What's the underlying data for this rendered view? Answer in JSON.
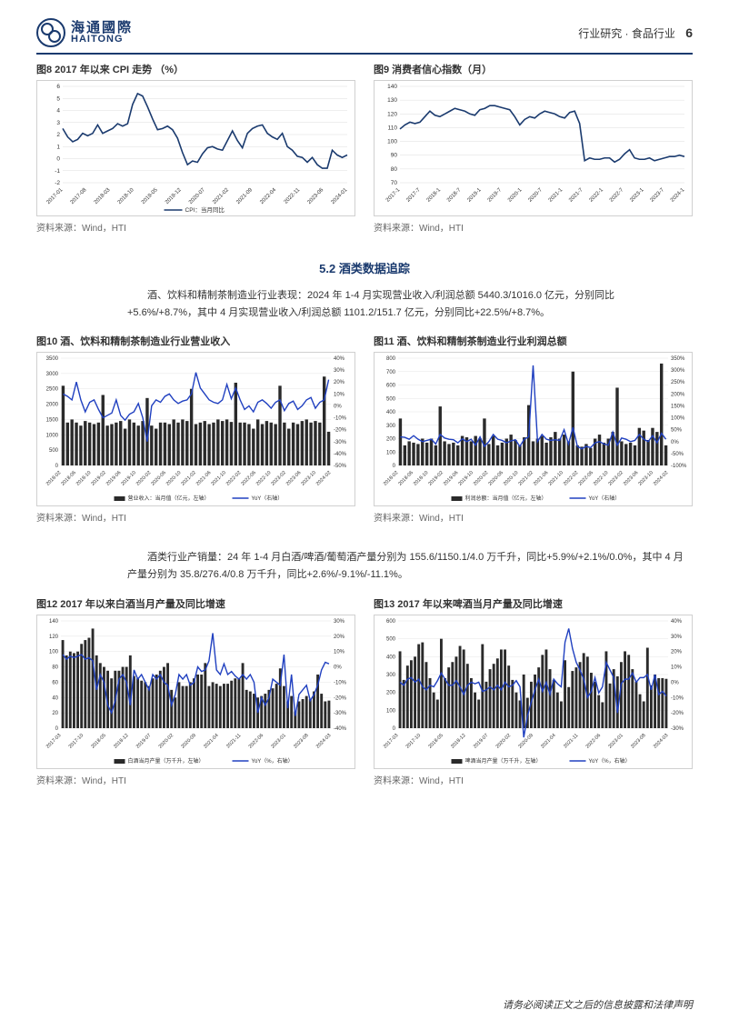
{
  "header": {
    "logo_cn": "海通國際",
    "logo_en": "HAITONG",
    "category": "行业研究 · 食品行业",
    "page_number": "6"
  },
  "section_5_2": {
    "heading": "5.2 酒类数据追踪",
    "para": "酒、饮料和精制茶制造业行业表现：2024 年 1-4 月实现营业收入/利润总额 5440.3/1016.0 亿元，分别同比+5.6%/+8.7%，其中 4 月实现营业收入/利润总额 1101.2/151.7 亿元，分别同比+22.5%/+8.7%。",
    "para2": "酒类行业产销量：24 年 1-4 月白酒/啤酒/葡萄酒产量分别为 155.6/1150.1/4.0 万千升，同比+5.9%/+2.1%/0.0%，其中 4 月产量分别为 35.8/276.4/0.8 万千升，同比+2.6%/-9.1%/-11.1%。"
  },
  "source_label": "资料来源：Wind，HTI",
  "footer": "请务必阅读正文之后的信息披露和法律声明",
  "charts": {
    "fig8": {
      "title": "图8  2017 年以来 CPI 走势  （%）",
      "type": "line",
      "line_color": "#1a3a6e",
      "grid_color": "#dddddd",
      "ylim": [
        -2,
        6
      ],
      "ytick_step": 1,
      "x_labels": [
        "2017-01",
        "2017-08",
        "2018-03",
        "2018-10",
        "2019-05",
        "2019-12",
        "2020-07",
        "2021-02",
        "2021-09",
        "2022-04",
        "2022-11",
        "2023-06",
        "2024-01"
      ],
      "legend": "CPI：当月同比",
      "values": [
        2.5,
        1.8,
        1.4,
        1.6,
        2.1,
        1.9,
        2.1,
        2.8,
        2.1,
        2.3,
        2.5,
        2.9,
        2.7,
        2.9,
        4.5,
        5.4,
        5.2,
        4.3,
        3.3,
        2.4,
        2.5,
        2.7,
        2.4,
        1.7,
        0.5,
        -0.5,
        -0.2,
        -0.3,
        0.4,
        0.9,
        1.0,
        0.8,
        0.7,
        1.5,
        2.3,
        1.5,
        0.9,
        2.1,
        2.5,
        2.7,
        2.8,
        2.1,
        1.8,
        1.6,
        2.1,
        1.0,
        0.7,
        0.2,
        0.1,
        -0.3,
        0.1,
        -0.5,
        -0.8,
        -0.8,
        0.7,
        0.3,
        0.1,
        0.3
      ]
    },
    "fig9": {
      "title": "图9  消费者信心指数（月）",
      "type": "line",
      "line_color": "#1a3a6e",
      "grid_color": "#dddddd",
      "ylim": [
        70,
        140
      ],
      "ytick_step": 10,
      "x_labels": [
        "2017-1",
        "2017-7",
        "2018-1",
        "2018-7",
        "2019-1",
        "2019-7",
        "2020-1",
        "2020-7",
        "2021-1",
        "2021-7",
        "2022-1",
        "2022-7",
        "2023-1",
        "2023-7",
        "2024-1"
      ],
      "values": [
        109,
        112,
        114,
        113,
        114,
        118,
        122,
        119,
        118,
        120,
        122,
        124,
        123,
        122,
        120,
        119,
        123,
        124,
        126,
        126,
        125,
        124,
        123,
        118,
        112,
        116,
        118,
        117,
        120,
        122,
        121,
        120,
        118,
        117,
        121,
        122,
        113,
        86,
        88,
        87,
        87,
        88,
        88,
        85,
        87,
        91,
        94,
        88,
        87,
        87,
        88,
        86,
        87,
        88,
        89,
        89,
        90,
        89
      ]
    },
    "fig10": {
      "title": "图10 酒、饮料和精制茶制造业行业营业收入",
      "type": "bar_line",
      "bar_color": "#2a2a2a",
      "line_color": "#2040c0",
      "grid_color": "#dddddd",
      "ylim_left": [
        0,
        3500
      ],
      "ytick_left_step": 500,
      "ylim_right": [
        -50,
        40
      ],
      "ytick_right_step": 10,
      "x_labels": [
        "2018-02",
        "2018-06",
        "2018-10",
        "2019-02",
        "2019-06",
        "2019-10",
        "2020-02",
        "2020-06",
        "2020-10",
        "2021-02",
        "2021-06",
        "2021-10",
        "2022-02",
        "2022-06",
        "2022-10",
        "2023-02",
        "2023-06",
        "2023-10",
        "2024-02"
      ],
      "legend_bar": "营业收入：当月值（亿元，左轴）",
      "legend_line": "YoY（右轴）",
      "bars": [
        2600,
        1400,
        1500,
        1400,
        1300,
        1450,
        1400,
        1350,
        1400,
        2300,
        1300,
        1350,
        1400,
        1450,
        1200,
        1500,
        1400,
        1300,
        1450,
        2200,
        1300,
        1200,
        1400,
        1400,
        1350,
        1500,
        1400,
        1500,
        1450,
        2500,
        1350,
        1400,
        1450,
        1350,
        1400,
        1500,
        1450,
        1500,
        1420,
        2700,
        1400,
        1400,
        1350,
        1200,
        1500,
        1350,
        1450,
        1400,
        1350,
        2600,
        1400,
        1200,
        1400,
        1350,
        1450,
        1500,
        1400,
        1450,
        1400,
        2900,
        1100
      ],
      "line": [
        10,
        8,
        5,
        20,
        5,
        -5,
        3,
        5,
        -3,
        -10,
        -8,
        -6,
        5,
        -8,
        -12,
        -7,
        -5,
        2,
        -10,
        -30,
        0,
        5,
        3,
        8,
        10,
        5,
        2,
        4,
        5,
        10,
        28,
        15,
        10,
        5,
        3,
        2,
        5,
        18,
        6,
        15,
        5,
        -3,
        0,
        -5,
        3,
        5,
        2,
        -2,
        3,
        5,
        -4,
        2,
        4,
        -3,
        0,
        5,
        7,
        -2,
        3,
        5,
        22
      ]
    },
    "fig11": {
      "title": "图11 酒、饮料和精制茶制造业行业利润总额",
      "type": "bar_line",
      "bar_color": "#2a2a2a",
      "line_color": "#2040c0",
      "grid_color": "#dddddd",
      "ylim_left": [
        0,
        800
      ],
      "ytick_left_step": 100,
      "ylim_right": [
        -100,
        350
      ],
      "ytick_right_step": 50,
      "x_labels": [
        "2018-02",
        "2018-06",
        "2018-10",
        "2019-02",
        "2019-06",
        "2019-10",
        "2020-02",
        "2020-06",
        "2020-10",
        "2021-02",
        "2021-06",
        "2021-10",
        "2022-02",
        "2022-06",
        "2022-10",
        "2023-02",
        "2023-06",
        "2023-10",
        "2024-02"
      ],
      "legend_bar": "利润总额：当月值（亿元，左轴）",
      "legend_line": "YoY（右轴）",
      "bars": [
        350,
        150,
        180,
        170,
        160,
        200,
        170,
        200,
        150,
        440,
        180,
        160,
        170,
        150,
        220,
        210,
        180,
        220,
        200,
        350,
        160,
        220,
        150,
        170,
        200,
        230,
        190,
        150,
        210,
        450,
        180,
        200,
        220,
        170,
        210,
        250,
        200,
        230,
        180,
        700,
        150,
        140,
        160,
        130,
        200,
        230,
        170,
        200,
        250,
        580,
        180,
        160,
        170,
        150,
        280,
        260,
        190,
        280,
        250,
        760,
        150
      ],
      "line": [
        20,
        18,
        10,
        25,
        10,
        0,
        5,
        10,
        -10,
        30,
        15,
        10,
        8,
        -5,
        12,
        0,
        10,
        -15,
        20,
        -20,
        0,
        30,
        10,
        5,
        -5,
        3,
        8,
        -20,
        10,
        20,
        320,
        0,
        30,
        10,
        5,
        8,
        5,
        50,
        -10,
        60,
        -20,
        -30,
        -20,
        -25,
        -5,
        0,
        -10,
        -15,
        40,
        -15,
        15,
        10,
        0,
        5,
        30,
        10,
        0,
        25,
        -5,
        35,
        10
      ]
    },
    "fig12": {
      "title": "图12 2017 年以来白酒当月产量及同比增速",
      "type": "bar_line",
      "bar_color": "#2a2a2a",
      "line_color": "#2040c0",
      "grid_color": "#dddddd",
      "ylim_left": [
        0,
        140
      ],
      "ytick_left_step": 20,
      "ylim_right": [
        -40,
        30
      ],
      "ytick_right_step": 10,
      "x_labels": [
        "2017-03",
        "2017-10",
        "2018-05",
        "2018-12",
        "2019-07",
        "2020-02",
        "2020-09",
        "2021-04",
        "2021-11",
        "2022-06",
        "2023-01",
        "2023-08",
        "2024-03"
      ],
      "legend_bar": "白酒当月产量（万千升，左轴）",
      "legend_line": "YoY（%，右轴）",
      "bars": [
        115,
        95,
        100,
        98,
        100,
        110,
        115,
        118,
        130,
        95,
        85,
        80,
        75,
        65,
        75,
        75,
        80,
        80,
        95,
        68,
        65,
        62,
        60,
        55,
        65,
        70,
        75,
        80,
        85,
        50,
        40,
        60,
        55,
        55,
        60,
        65,
        70,
        70,
        85,
        55,
        60,
        58,
        55,
        58,
        58,
        62,
        65,
        65,
        85,
        50,
        48,
        45,
        40,
        42,
        45,
        50,
        52,
        58,
        78,
        55,
        35,
        42,
        22,
        35,
        38,
        42,
        38,
        48,
        70,
        45,
        35,
        36
      ],
      "line": [
        8,
        5,
        7,
        6,
        7,
        8,
        5,
        6,
        4,
        -15,
        -5,
        -10,
        -25,
        -30,
        -22,
        -8,
        -5,
        -10,
        -25,
        -2,
        -8,
        -5,
        -10,
        -15,
        -5,
        -8,
        -5,
        -10,
        -12,
        -25,
        -18,
        -5,
        -8,
        -5,
        -12,
        -10,
        0,
        -3,
        -2,
        4,
        22,
        -2,
        -5,
        2,
        -5,
        -3,
        -6,
        -8,
        -5,
        -8,
        -5,
        -10,
        -30,
        -20,
        -25,
        -20,
        -8,
        -10,
        -12,
        8,
        -27,
        -5,
        -32,
        -18,
        -15,
        -12,
        -22,
        -18,
        -12,
        -2,
        3,
        2
      ]
    },
    "fig13": {
      "title": "图13 2017 年以来啤酒当月产量及同比增速",
      "type": "bar_line",
      "bar_color": "#2a2a2a",
      "line_color": "#2040c0",
      "grid_color": "#dddddd",
      "ylim_left": [
        0,
        600
      ],
      "ytick_left_step": 100,
      "ylim_right": [
        -30,
        40
      ],
      "ytick_right_step": 10,
      "x_labels": [
        "2017-03",
        "2017-10",
        "2018-05",
        "2018-12",
        "2019-07",
        "2020-02",
        "2020-09",
        "2021-04",
        "2021-11",
        "2022-06",
        "2023-01",
        "2023-08",
        "2024-03"
      ],
      "legend_bar": "啤酒当月产量（万千升，左轴）",
      "legend_line": "YoY（%，右轴）",
      "bars": [
        430,
        270,
        350,
        380,
        400,
        470,
        480,
        370,
        280,
        200,
        160,
        500,
        280,
        340,
        370,
        400,
        460,
        440,
        360,
        280,
        200,
        160,
        470,
        260,
        330,
        360,
        390,
        440,
        440,
        350,
        270,
        200,
        155,
        300,
        170,
        260,
        300,
        340,
        410,
        440,
        330,
        270,
        200,
        150,
        380,
        230,
        320,
        340,
        370,
        420,
        400,
        310,
        260,
        185,
        145,
        430,
        250,
        330,
        290,
        370,
        430,
        410,
        330,
        260,
        190,
        150,
        450,
        240,
        300,
        280,
        280,
        276
      ],
      "line": [
        0,
        -2,
        2,
        3,
        0,
        2,
        -3,
        -5,
        -2,
        -3,
        1,
        6,
        2,
        -2,
        -2,
        1,
        -3,
        -8,
        -2,
        0,
        -1,
        0,
        -6,
        -5,
        -3,
        -5,
        -2,
        -5,
        0,
        -3,
        -2,
        1,
        -3,
        -36,
        -22,
        -13,
        -5,
        2,
        -6,
        0,
        -8,
        2,
        -1,
        -3,
        26,
        35,
        22,
        13,
        8,
        2,
        -10,
        -6,
        3,
        -7,
        -3,
        13,
        8,
        3,
        -20,
        -1,
        2,
        2,
        6,
        0,
        3,
        3,
        5,
        -5,
        5,
        -8,
        -6,
        -9
      ]
    }
  }
}
